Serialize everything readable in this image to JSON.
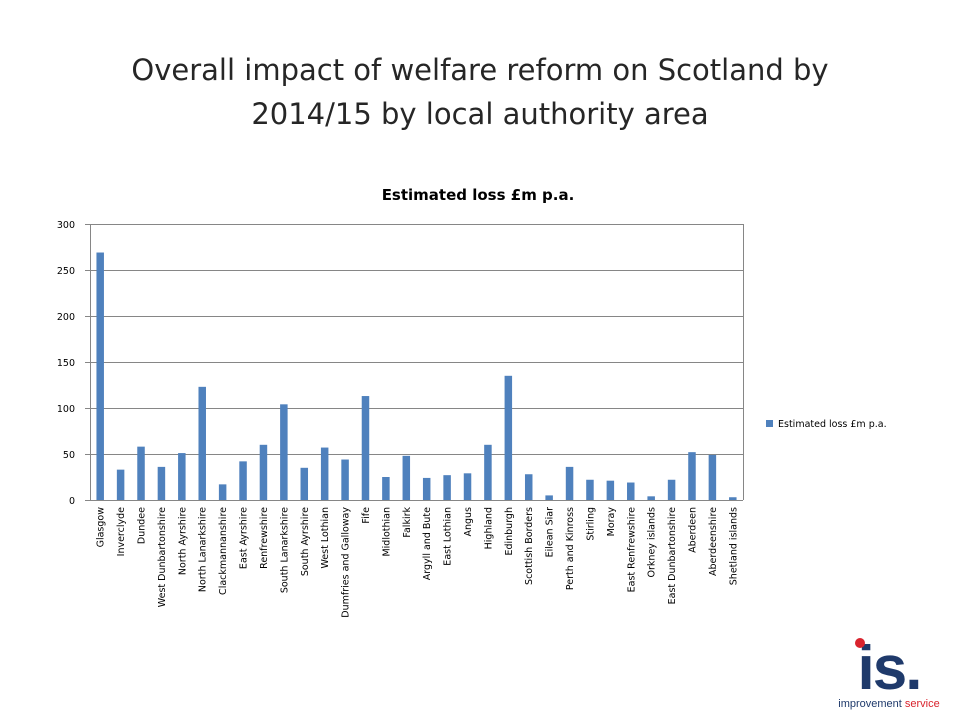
{
  "slide": {
    "title_line1": "Overall impact of welfare reform on Scotland by",
    "title_line2": "2014/15 by local authority area"
  },
  "logo": {
    "mark": "is.",
    "text_a": "improvement",
    "text_b": "service"
  },
  "colors": {
    "bar": "#4F81BD",
    "grid": "#868686"
  },
  "chart_data": {
    "type": "bar",
    "title": "Estimated loss £m p.a.",
    "xlabel": "",
    "ylabel": "",
    "ylim": [
      0,
      300
    ],
    "yticks": [
      0,
      50,
      100,
      150,
      200,
      250,
      300
    ],
    "grid": true,
    "legend": "right",
    "categories": [
      "Glasgow",
      "Inverclyde",
      "Dundee",
      "West Dunbartonshire",
      "North Ayrshire",
      "North Lanarkshire",
      "Clackmannanshire",
      "East Ayrshire",
      "Renfrewshire",
      "South Lanarkshire",
      "South Ayrshire",
      "West Lothian",
      "Dumfries and Galloway",
      "Fife",
      "Midlothian",
      "Falkirk",
      "Argyll and Bute",
      "East Lothian",
      "Angus",
      "Highland",
      "Edinburgh",
      "Scottish Borders",
      "Eilean Siar",
      "Perth and Kinross",
      "Stirling",
      "Moray",
      "East Renfrewshire",
      "Orkney islands",
      "East Dunbartonshire",
      "Aberdeen",
      "Aberdeenshire",
      "Shetland islands"
    ],
    "series": [
      {
        "name": "Estimated loss £m p.a.",
        "values": [
          269,
          33,
          58,
          36,
          51,
          123,
          17,
          42,
          60,
          104,
          35,
          57,
          44,
          113,
          25,
          48,
          24,
          27,
          29,
          60,
          135,
          28,
          5,
          36,
          22,
          21,
          19,
          4,
          22,
          52,
          49,
          3
        ]
      }
    ]
  }
}
